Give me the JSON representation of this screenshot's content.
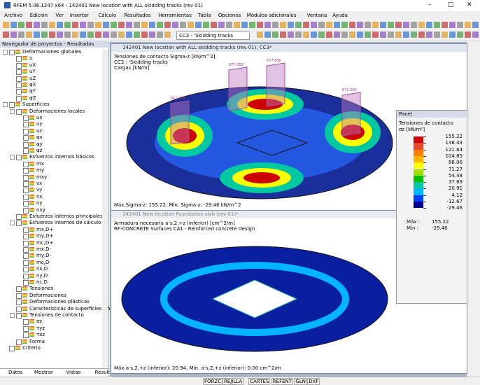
{
  "window": {
    "title": "RFEM 5.06.1247 x64 - 142401 New location with ALL skidding tracks (rev 01)"
  },
  "menu": [
    "Archivo",
    "Edición",
    "Ver",
    "Insertar",
    "Cálculo",
    "Resultados",
    "Herramientas",
    "Tabla",
    "Opciones",
    "Módulos adicionales",
    "Ventana",
    "Ayuda"
  ],
  "toolbar": {
    "load_case": "CC3 - 'Skidding tracks"
  },
  "navigator": {
    "title": "Navegador de proyectos - Resultados",
    "tree": [
      {
        "label": "Deformaciones globales",
        "children": [
          {
            "label": "u"
          },
          {
            "label": "uX"
          },
          {
            "label": "uY"
          },
          {
            "label": "uZ"
          },
          {
            "label": "φX"
          },
          {
            "label": "φY"
          },
          {
            "label": "φZ"
          }
        ]
      },
      {
        "label": "Superficies",
        "children": [
          {
            "label": "Deformaciones locales",
            "children": [
              {
                "label": "ux"
              },
              {
                "label": "uy"
              },
              {
                "label": "uz"
              },
              {
                "label": "φx"
              },
              {
                "label": "φy"
              },
              {
                "label": "φz"
              }
            ]
          },
          {
            "label": "Esfuerzos internos básicos",
            "children": [
              {
                "label": "mx"
              },
              {
                "label": "my"
              },
              {
                "label": "mxy"
              },
              {
                "label": "vx"
              },
              {
                "label": "vy"
              },
              {
                "label": "nx"
              },
              {
                "label": "ny"
              },
              {
                "label": "nxy"
              }
            ]
          },
          {
            "label": "Esfuerzos internos principales"
          },
          {
            "label": "Esfuerzos internos de cálculo",
            "children": [
              {
                "label": "mx,D+"
              },
              {
                "label": "my,D+"
              },
              {
                "label": "mc,D+"
              },
              {
                "label": "mx,D-"
              },
              {
                "label": "my,D-"
              },
              {
                "label": "mc,D-"
              },
              {
                "label": "nx,D"
              },
              {
                "label": "ny,D"
              },
              {
                "label": "nc,D"
              }
            ]
          },
          {
            "label": "Tensiones"
          },
          {
            "label": "Deformaciones"
          },
          {
            "label": "Deformaciones plásticas"
          },
          {
            "label": "Características de superficies isótr"
          },
          {
            "label": "Tensiones de contacto",
            "children": [
              {
                "label": "σz"
              },
              {
                "label": "τyz"
              },
              {
                "label": "τxz"
              }
            ]
          },
          {
            "label": "Forma"
          }
        ]
      },
      {
        "label": "Criterio"
      }
    ],
    "tabs": [
      "Datos",
      "Mostrar",
      "Vistas",
      "Resultados"
    ]
  },
  "view1": {
    "title": "142401 New location with ALL skidding tracks (rev 01), CC3*",
    "info": [
      "Tensiones de contacto Sigma-z [kN/m^2]",
      "CC3 : 'Skidding tracks",
      "Cargas [kN/m]"
    ],
    "labels": [
      "677.000",
      "677.000",
      "661.900",
      "671.000"
    ],
    "footer": "Máx.Sigma-z: 155.22, Mín. Sigma-z: -29.46 kN/m^2"
  },
  "view2": {
    "title": "142401 New location Foundation slab (rev 01)*",
    "info": [
      "Armadura necesaria a-s,2,+z (inferior) [cm^2/m]",
      "RF-CONCRETE Surfaces CA1 - Reinforced concrete design"
    ],
    "footer": "Máx a-s,2,+z (inferior): 20.94, Mín. a-s,2,+z (inferior): 0.00 cm^2/m"
  },
  "panel": {
    "title": "Panel",
    "heading": "Tensiones de contacto",
    "unit": "σz [kN/m²]",
    "legend": {
      "values": [
        155.22,
        138.43,
        121.64,
        104.85,
        88.06,
        71.27,
        54.48,
        37.69,
        20.91,
        4.12,
        -12.67,
        -29.46
      ],
      "colors": [
        "#cc0000",
        "#e8462c",
        "#ff7f00",
        "#ffb400",
        "#ffff00",
        "#a0e000",
        "#00c000",
        "#00c8a0",
        "#00b4ff",
        "#0040ff",
        "#000090"
      ]
    },
    "max_label": "Máx :",
    "max": 155.22,
    "min_label": "Mín :",
    "min": -29.46
  },
  "status": [
    "FORZC",
    "REJILLA",
    "CARTES",
    "REFENT",
    "GLN",
    "DXF"
  ]
}
